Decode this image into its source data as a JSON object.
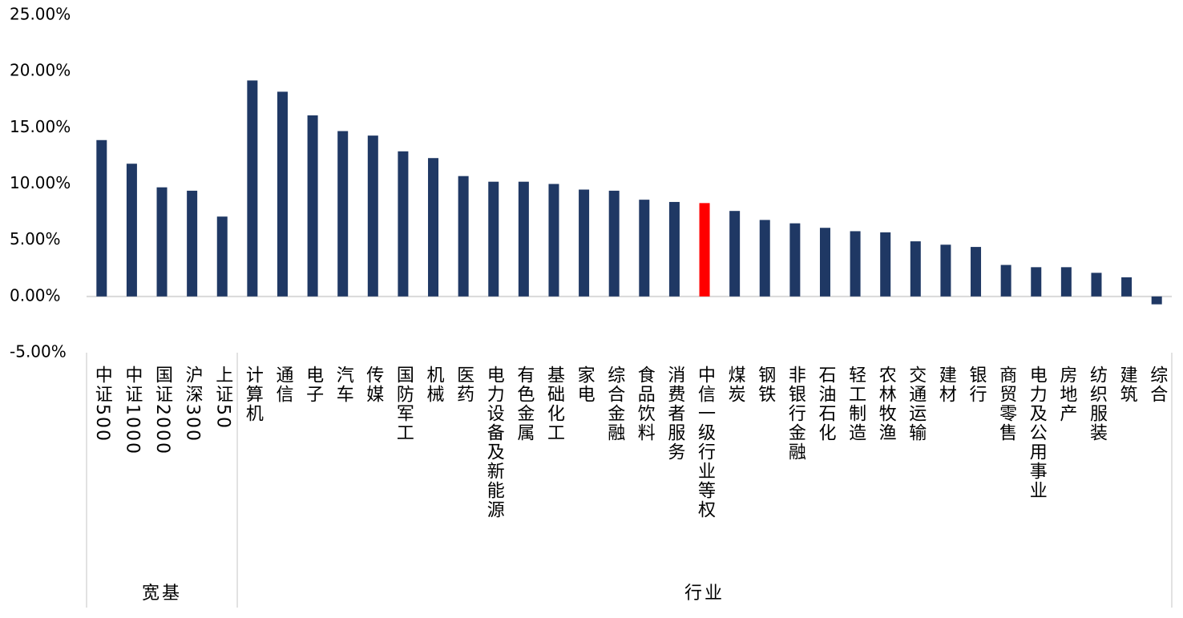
{
  "chart_data": {
    "type": "bar",
    "color": "#1f3864",
    "groups": [
      {
        "name": "宽基",
        "categories": [
          "中证500",
          "中证1000",
          "国证2000",
          "沪深300",
          "上证50"
        ],
        "values": [
          13.9,
          11.8,
          9.7,
          9.4,
          7.1
        ],
        "colors": [
          "#1f3864",
          "#1f3864",
          "#1f3864",
          "#1f3864",
          "#1f3864"
        ]
      },
      {
        "name": "行业",
        "categories": [
          "计算机",
          "通信",
          "电子",
          "汽车",
          "传媒",
          "国防军工",
          "机械",
          "医药",
          "电力设备及新能源",
          "有色金属",
          "基础化工",
          "家电",
          "综合金融",
          "食品饮料",
          "消费者服务",
          "中信一级行业等权",
          "煤炭",
          "钢铁",
          "非银行金融",
          "石油石化",
          "轻工制造",
          "农林牧渔",
          "交通运输",
          "建材",
          "银行",
          "商贸零售",
          "电力及公用事业",
          "房地产",
          "纺织服装",
          "建筑",
          "综合"
        ],
        "values": [
          19.2,
          18.2,
          16.1,
          14.7,
          14.3,
          12.9,
          12.3,
          10.7,
          10.2,
          10.2,
          10.0,
          9.5,
          9.4,
          8.6,
          8.4,
          8.3,
          7.6,
          6.8,
          6.5,
          6.1,
          5.8,
          5.7,
          4.9,
          4.6,
          4.4,
          2.8,
          2.6,
          2.6,
          2.1,
          1.7,
          -0.7
        ],
        "colors": [
          "#1f3864",
          "#1f3864",
          "#1f3864",
          "#1f3864",
          "#1f3864",
          "#1f3864",
          "#1f3864",
          "#1f3864",
          "#1f3864",
          "#1f3864",
          "#1f3864",
          "#1f3864",
          "#1f3864",
          "#1f3864",
          "#1f3864",
          "#ff0000",
          "#1f3864",
          "#1f3864",
          "#1f3864",
          "#1f3864",
          "#1f3864",
          "#1f3864",
          "#1f3864",
          "#1f3864",
          "#1f3864",
          "#1f3864",
          "#1f3864",
          "#1f3864",
          "#1f3864",
          "#1f3864",
          "#1f3864"
        ]
      }
    ],
    "ylim": [
      -5,
      25
    ],
    "yticks": [
      {
        "value": -5,
        "label": "-5.00%"
      },
      {
        "value": 0,
        "label": "0.00%"
      },
      {
        "value": 5,
        "label": "5.00%"
      },
      {
        "value": 10,
        "label": "10.00%"
      },
      {
        "value": 15,
        "label": "15.00%"
      },
      {
        "value": 20,
        "label": "20.00%"
      },
      {
        "value": 25,
        "label": "25.00%"
      }
    ]
  }
}
